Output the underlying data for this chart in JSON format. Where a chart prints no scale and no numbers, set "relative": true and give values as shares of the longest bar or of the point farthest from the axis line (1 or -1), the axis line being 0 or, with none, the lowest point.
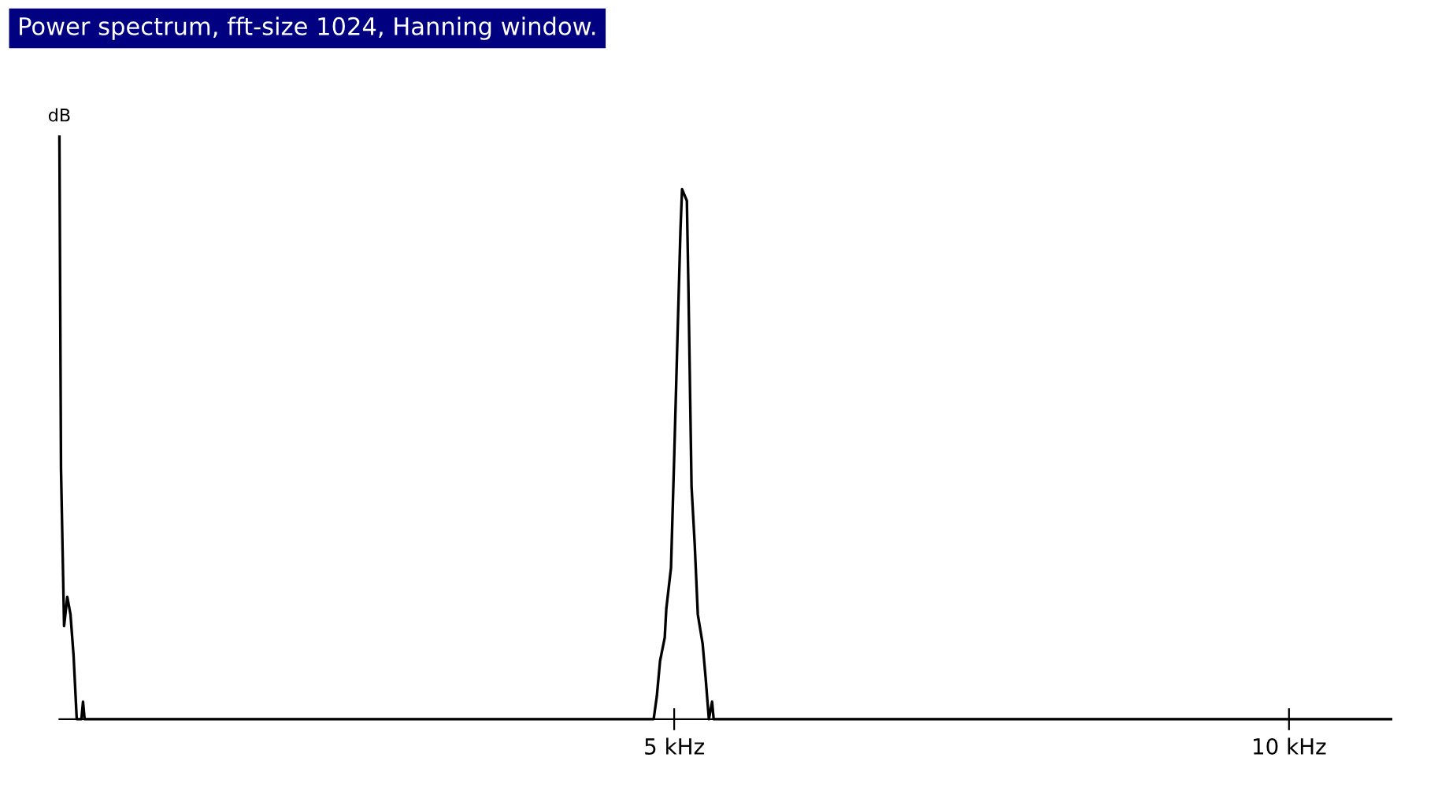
{
  "chart_data": {
    "type": "line",
    "title": "Power spectrum, fft-size 1024, Hanning window.",
    "ylabel": "dB",
    "relative": true,
    "x": [
      0,
      0.013,
      0.038,
      0.064,
      0.09,
      0.115,
      0.141,
      0.179,
      0.192,
      0.205,
      4.833,
      4.859,
      4.885,
      4.923,
      4.936,
      4.974,
      5.0,
      5.026,
      5.051,
      5.064,
      5.103,
      5.115,
      5.141,
      5.167,
      5.192,
      5.231,
      5.256,
      5.282,
      5.308,
      5.321,
      10.83
    ],
    "values": [
      1.0,
      0.43,
      0.16,
      0.21,
      0.18,
      0.11,
      0,
      0,
      0.03,
      0,
      0,
      0.04,
      0.1,
      0.14,
      0.19,
      0.26,
      0.45,
      0.65,
      0.84,
      0.91,
      0.89,
      0.75,
      0.4,
      0.3,
      0.18,
      0.13,
      0.07,
      0,
      0.03,
      0,
      0
    ],
    "color": "#000000",
    "xlim": [
      0,
      10.83
    ],
    "xticks": [
      {
        "value": 5,
        "label": "5 kHz"
      },
      {
        "value": 10,
        "label": "10 kHz"
      }
    ],
    "grid": false,
    "legend": false,
    "marker": "none",
    "line_style": "solid"
  }
}
